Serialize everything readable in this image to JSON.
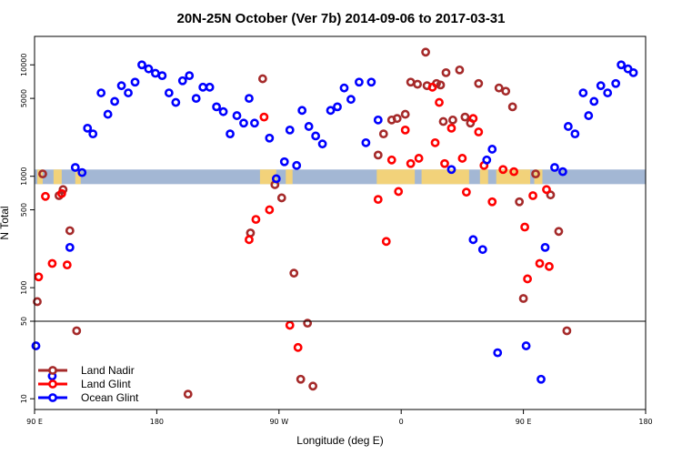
{
  "chart_data": {
    "type": "scatter",
    "title": "20N-25N October (Ver 7b)   2014-09-06 to 2017-03-31",
    "xlabel": "Longitude (deg E)",
    "ylabel": "N Total",
    "x_ticks": [
      {
        "lon": -270,
        "label": "90 E"
      },
      {
        "lon": -180,
        "label": "180"
      },
      {
        "lon": -90,
        "label": "90 W"
      },
      {
        "lon": 0,
        "label": "0"
      },
      {
        "lon": 90,
        "label": "90 E"
      },
      {
        "lon": 180,
        "label": "180"
      }
    ],
    "xlim": [
      -270,
      180
    ],
    "y_ticks": [
      10,
      50,
      100,
      500,
      1000,
      5000,
      10000
    ],
    "ylim_upper": [
      50,
      18000
    ],
    "ylim_lower": [
      8,
      50
    ],
    "scale": "log",
    "land_band": {
      "y_low": 850,
      "y_high": 1150,
      "ocean_color": "#a3b7d4",
      "land_color": "#f2d27a"
    },
    "legend_position": "bottom-left",
    "series": [
      {
        "name": "Land Nadir",
        "color": "#a52a2a",
        "points": [
          [
            -268,
            75
          ],
          [
            -264,
            1050
          ],
          [
            -252,
            670
          ],
          [
            -249,
            760
          ],
          [
            -244,
            325
          ],
          [
            -239,
            41
          ],
          [
            -157,
            11
          ],
          [
            -111,
            310
          ],
          [
            -102,
            7500
          ],
          [
            -93,
            840
          ],
          [
            -88,
            640
          ],
          [
            -79,
            135
          ],
          [
            -74,
            15
          ],
          [
            -69,
            48
          ],
          [
            -65,
            13
          ],
          [
            -17,
            1550
          ],
          [
            -13,
            2400
          ],
          [
            -7,
            3200
          ],
          [
            -3,
            3300
          ],
          [
            3,
            3600
          ],
          [
            7,
            7000
          ],
          [
            12,
            6700
          ],
          [
            18,
            13000
          ],
          [
            19,
            6500
          ],
          [
            26,
            6800
          ],
          [
            29,
            6600
          ],
          [
            31,
            3100
          ],
          [
            33,
            8500
          ],
          [
            38,
            3200
          ],
          [
            43,
            9000
          ],
          [
            47,
            3400
          ],
          [
            51,
            3000
          ],
          [
            57,
            6800
          ],
          [
            72,
            6200
          ],
          [
            77,
            5800
          ],
          [
            82,
            4200
          ],
          [
            87,
            590
          ],
          [
            90,
            80
          ],
          [
            99,
            1050
          ],
          [
            110,
            680
          ],
          [
            116,
            320
          ],
          [
            122,
            41
          ]
        ]
      },
      {
        "name": "Land Glint",
        "color": "#ff0000",
        "points": [
          [
            -267,
            125
          ],
          [
            -262,
            660
          ],
          [
            -257,
            165
          ],
          [
            -250,
            700
          ],
          [
            -246,
            160
          ],
          [
            -112,
            270
          ],
          [
            -107,
            410
          ],
          [
            -101,
            3400
          ],
          [
            -97,
            500
          ],
          [
            -82,
            46
          ],
          [
            -76,
            29
          ],
          [
            -17,
            620
          ],
          [
            -11,
            260
          ],
          [
            -7,
            1400
          ],
          [
            -2,
            730
          ],
          [
            3,
            2600
          ],
          [
            7,
            1300
          ],
          [
            13,
            1450
          ],
          [
            23,
            6300
          ],
          [
            25,
            2000
          ],
          [
            28,
            4600
          ],
          [
            32,
            1300
          ],
          [
            37,
            2700
          ],
          [
            45,
            1450
          ],
          [
            48,
            720
          ],
          [
            53,
            3300
          ],
          [
            57,
            2500
          ],
          [
            61,
            1250
          ],
          [
            67,
            590
          ],
          [
            75,
            1150
          ],
          [
            83,
            1100
          ],
          [
            91,
            350
          ],
          [
            93,
            120
          ],
          [
            97,
            670
          ],
          [
            102,
            165
          ],
          [
            107,
            760
          ],
          [
            109,
            155
          ]
        ]
      },
      {
        "name": "Ocean Glint",
        "color": "#0000ff",
        "points": [
          [
            -269,
            30
          ],
          [
            -257,
            16
          ],
          [
            -244,
            230
          ],
          [
            -240,
            1200
          ],
          [
            -235,
            1080
          ],
          [
            -231,
            2700
          ],
          [
            -227,
            2400
          ],
          [
            -221,
            5600
          ],
          [
            -216,
            3600
          ],
          [
            -211,
            4700
          ],
          [
            -206,
            6500
          ],
          [
            -201,
            5600
          ],
          [
            -196,
            7000
          ],
          [
            -191,
            10000
          ],
          [
            -186,
            9200
          ],
          [
            -181,
            8400
          ],
          [
            -176,
            8000
          ],
          [
            -171,
            5600
          ],
          [
            -166,
            4600
          ],
          [
            -161,
            7200
          ],
          [
            -156,
            8000
          ],
          [
            -151,
            5000
          ],
          [
            -146,
            6300
          ],
          [
            -141,
            6300
          ],
          [
            -136,
            4200
          ],
          [
            -131,
            3800
          ],
          [
            -126,
            2400
          ],
          [
            -121,
            3500
          ],
          [
            -116,
            3000
          ],
          [
            -112,
            5000
          ],
          [
            -108,
            3000
          ],
          [
            -97,
            2200
          ],
          [
            -92,
            950
          ],
          [
            -86,
            1350
          ],
          [
            -82,
            2600
          ],
          [
            -77,
            1250
          ],
          [
            -73,
            3900
          ],
          [
            -68,
            2800
          ],
          [
            -63,
            2300
          ],
          [
            -58,
            1950
          ],
          [
            -52,
            3900
          ],
          [
            -47,
            4200
          ],
          [
            -42,
            6200
          ],
          [
            -37,
            4900
          ],
          [
            -31,
            7000
          ],
          [
            -26,
            2000
          ],
          [
            -22,
            7000
          ],
          [
            -17,
            3200
          ],
          [
            37,
            1150
          ],
          [
            53,
            270
          ],
          [
            60,
            220
          ],
          [
            63,
            1400
          ],
          [
            67,
            1750
          ],
          [
            71,
            26
          ],
          [
            92,
            30
          ],
          [
            103,
            15
          ],
          [
            106,
            230
          ],
          [
            113,
            1200
          ],
          [
            119,
            1100
          ],
          [
            123,
            2800
          ],
          [
            128,
            2400
          ],
          [
            134,
            5600
          ],
          [
            138,
            3500
          ],
          [
            142,
            4700
          ],
          [
            147,
            6500
          ],
          [
            152,
            5600
          ],
          [
            158,
            6800
          ],
          [
            162,
            10000
          ],
          [
            167,
            9200
          ],
          [
            171,
            8500
          ]
        ]
      }
    ]
  }
}
